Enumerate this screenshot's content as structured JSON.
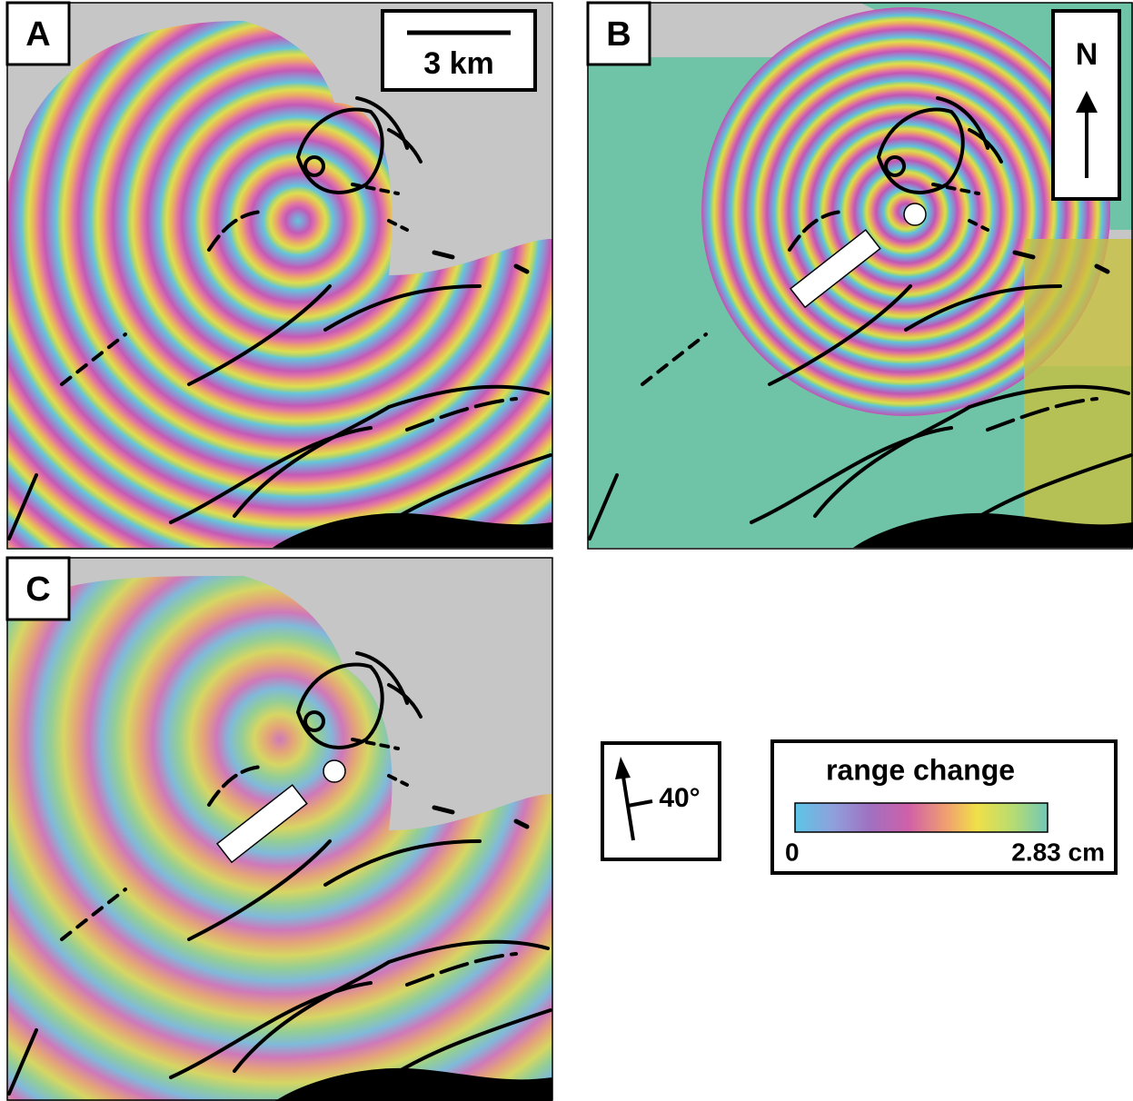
{
  "panels": [
    {
      "label": "A"
    },
    {
      "label": "B"
    },
    {
      "label": "C"
    }
  ],
  "scale_bar": {
    "label": "3 km"
  },
  "north_arrow": {
    "label": "N"
  },
  "look_direction": {
    "label": "40°"
  },
  "legend": {
    "title": "range change",
    "min_label": "0",
    "max_label": "2.83 cm"
  }
}
